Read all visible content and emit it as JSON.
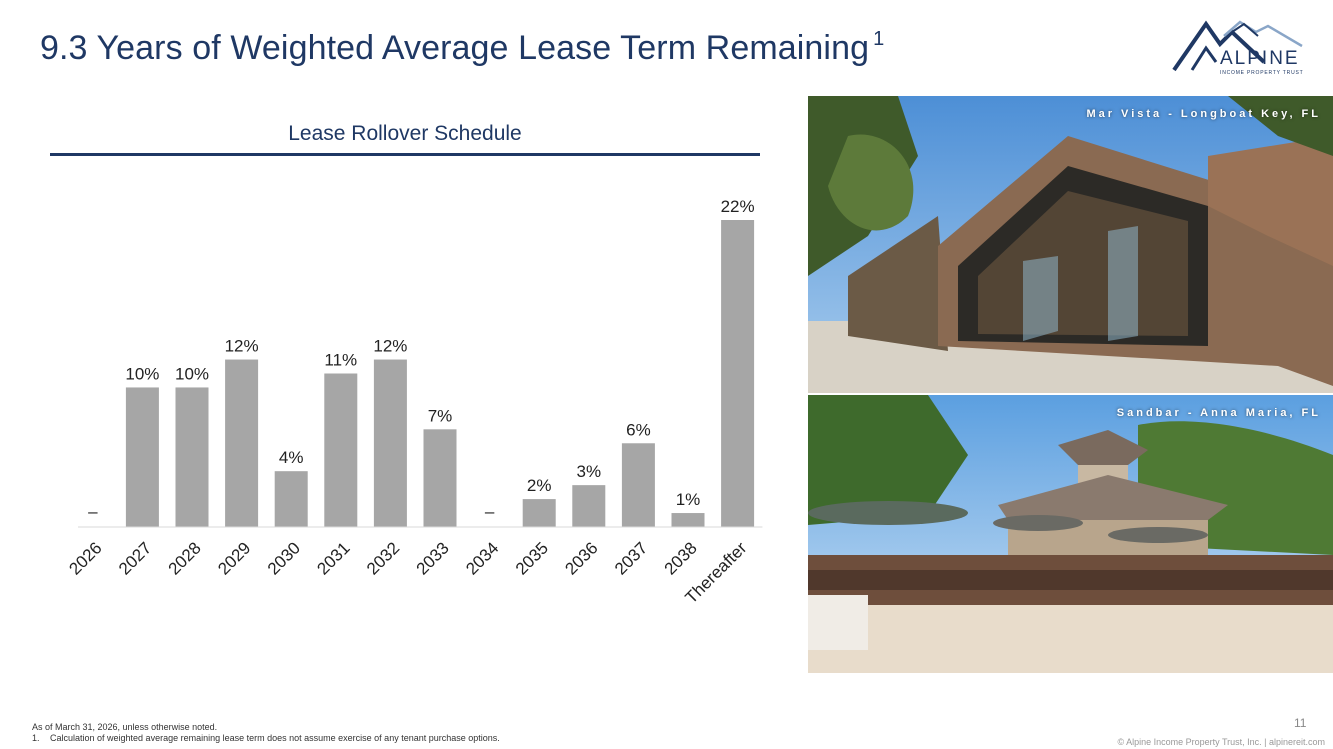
{
  "slide": {
    "title": "9.3 Years of Weighted Average Lease Term Remaining",
    "title_superscript": "1",
    "page_number": "11",
    "copyright": "© Alpine Income Property Trust, Inc.  |  alpinereit.com"
  },
  "logo": {
    "wordmark": "ALPINE",
    "tagline": "INCOME PROPERTY TRUST",
    "color": "#1f3864"
  },
  "footnotes": {
    "as_of": "As of March 31, 2026, unless otherwise noted.",
    "note_number": "1.",
    "note_text": "Calculation of weighted average remaining lease term does not assume exercise of any tenant purchase options."
  },
  "photos": [
    {
      "caption": "Mar Vista - Longboat Key, FL"
    },
    {
      "caption": "Sandbar - Anna Maria, FL"
    }
  ],
  "chart_data": {
    "type": "bar",
    "title": "Lease Rollover Schedule",
    "categories": [
      "2026",
      "2027",
      "2028",
      "2029",
      "2030",
      "2031",
      "2032",
      "2033",
      "2034",
      "2035",
      "2036",
      "2037",
      "2038",
      "Thereafter"
    ],
    "values": [
      0,
      10,
      10,
      12,
      4,
      11,
      12,
      7,
      0,
      2,
      3,
      6,
      1,
      22
    ],
    "data_labels": [
      "–",
      "10%",
      "10%",
      "12%",
      "4%",
      "11%",
      "12%",
      "7%",
      "–",
      "2%",
      "3%",
      "6%",
      "1%",
      "22%"
    ],
    "ylim": [
      0,
      22
    ],
    "grid": false,
    "bar_color": "#a6a6a6",
    "accent_color": "#1f3864"
  }
}
